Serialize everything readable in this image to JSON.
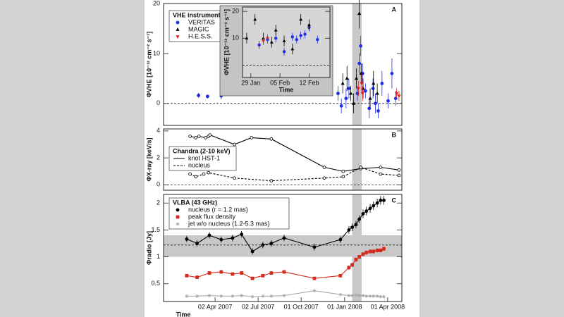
{
  "chart_data": [
    {
      "type": "scatter",
      "title": "A",
      "ylabel": "ΦVHE [10⁻¹² cm⁻² s⁻¹]",
      "xlim": [
        "2006-12-14",
        "2008-05-01"
      ],
      "ylim": [
        -4.4,
        20
      ],
      "yticks": [
        0,
        10,
        20
      ],
      "reference_line": 0,
      "shaded_x": [
        "2008-01-17",
        "2008-02-06"
      ],
      "legend": {
        "title": "VHE instruments",
        "position": "upper left",
        "symbol": "marker"
      },
      "series": [
        {
          "name": "VERITAS",
          "color": "#1f2ee6",
          "marker": "circle",
          "x": [
            "2007-02-26",
            "2007-03-17",
            "2007-04-15",
            "2007-12-18",
            "2007-12-25",
            "2008-01-04",
            "2008-01-10",
            "2008-01-28",
            "2008-02-01",
            "2008-02-04",
            "2008-02-08",
            "2008-02-14",
            "2008-02-22",
            "2008-03-01",
            "2008-03-06",
            "2008-03-12",
            "2008-03-20",
            "2008-04-02",
            "2008-04-10",
            "2008-04-18"
          ],
          "values": [
            1.6,
            1.4,
            1.5,
            2.0,
            -0.5,
            1.0,
            3.0,
            2.0,
            8.0,
            11.5,
            6.0,
            2.5,
            -1.0,
            3.0,
            0.0,
            -1.5,
            4.0,
            0.5,
            6.0,
            1.0
          ],
          "errors": [
            0.5,
            0.4,
            0.7,
            1.5,
            1.5,
            2.0,
            2.0,
            1.5,
            2.0,
            2.0,
            2.0,
            1.5,
            2.0,
            2.0,
            2.0,
            1.5,
            2.5,
            1.5,
            3.0,
            1.5
          ]
        },
        {
          "name": "MAGIC",
          "color": "#000000",
          "marker": "triangle",
          "x": [
            "2007-12-28",
            "2008-01-06",
            "2008-01-14",
            "2008-01-20",
            "2008-01-26",
            "2008-02-01",
            "2008-02-05",
            "2008-02-09",
            "2008-02-24",
            "2008-03-02",
            "2008-03-10"
          ],
          "values": [
            4.0,
            5.0,
            2.0,
            0.0,
            5.0,
            18.0,
            6.0,
            3.0,
            1.0,
            4.0,
            2.0
          ],
          "errors": [
            2.0,
            2.5,
            1.5,
            2.0,
            2.0,
            3.0,
            2.0,
            2.0,
            2.0,
            2.5,
            2.0
          ]
        },
        {
          "name": "H.E.S.S.",
          "color": "#e02020",
          "marker": "triangle-down",
          "x": [
            "2008-01-30",
            "2008-02-06",
            "2008-02-08",
            "2008-04-20",
            "2008-04-25"
          ],
          "values": [
            3.0,
            4.0,
            2.0,
            2.0,
            1.5
          ],
          "errors": [
            1.5,
            2.0,
            1.5,
            1.0,
            1.0
          ]
        }
      ]
    },
    {
      "type": "scatter",
      "xlabel": "Time",
      "ylabel": "ΦVHE [10⁻¹² cm⁻² s⁻¹]",
      "xlim": [
        "2008-01-27",
        "2008-02-17"
      ],
      "ylim": [
        -4.6,
        21.6
      ],
      "yticks": [
        10,
        20
      ],
      "xticks": [
        {
          "value": "2008-01-29",
          "label": "29 Jan"
        },
        {
          "value": "2008-02-05",
          "label": "05 Feb"
        },
        {
          "value": "2008-02-12",
          "label": "12 Feb"
        }
      ],
      "reference_line": 0,
      "series": [
        {
          "color": "#1f2ee6",
          "marker": "circle",
          "x": [
            "2008-01-31",
            "2008-02-02",
            "2008-02-04",
            "2008-02-06",
            "2008-02-08",
            "2008-02-09",
            "2008-02-10",
            "2008-02-11",
            "2008-02-12",
            "2008-02-14"
          ],
          "values": [
            7.5,
            9.5,
            10.0,
            5.0,
            10.5,
            9.5,
            11.0,
            11.5,
            14.0,
            9.5
          ],
          "errors": [
            1.5,
            1.5,
            1.5,
            1.5,
            1.5,
            1.5,
            1.5,
            1.5,
            1.5,
            1.5
          ]
        },
        {
          "color": "#000000",
          "marker": "triangle",
          "x": [
            "2008-01-28",
            "2008-01-30",
            "2008-02-01",
            "2008-02-03",
            "2008-02-04",
            "2008-02-06",
            "2008-02-08",
            "2008-02-10",
            "2008-02-12"
          ],
          "values": [
            10.0,
            17.0,
            10.0,
            8.5,
            13.0,
            9.0,
            6.0,
            17.0,
            15.0
          ],
          "errors": [
            2.0,
            2.0,
            2.0,
            2.0,
            2.0,
            2.0,
            2.0,
            2.0,
            2.0
          ]
        },
        {
          "color": "#e02020",
          "marker": "triangle-down",
          "x": [
            "2008-02-01",
            "2008-02-02"
          ],
          "values": [
            9.0,
            10.0
          ],
          "errors": [
            1.5,
            1.5
          ]
        }
      ]
    },
    {
      "type": "line",
      "title": "B",
      "ylabel": "ΦX-ray [keV/s]",
      "xlim": [
        "2006-12-14",
        "2008-05-01"
      ],
      "ylim": [
        -0.4,
        4.15
      ],
      "yticks": [
        0,
        2,
        4
      ],
      "reference_line": 0,
      "shaded_x": [
        "2008-01-17",
        "2008-02-06"
      ],
      "legend": {
        "title": "Chandra (2-10 keV)",
        "position": "upper left",
        "symbol": "line"
      },
      "series": [
        {
          "name": "knot HST-1",
          "color": "#000000",
          "marker": "circle-open",
          "dash": false,
          "x": [
            "2007-02-08",
            "2007-02-20",
            "2007-02-27",
            "2007-03-13",
            "2007-03-19",
            "2007-03-22",
            "2007-05-13",
            "2007-06-18",
            "2007-07-30",
            "2007-11-19",
            "2007-12-29",
            "2008-02-04",
            "2008-03-17",
            "2008-04-25"
          ],
          "values": [
            3.6,
            3.5,
            3.6,
            3.5,
            3.6,
            3.7,
            3.0,
            3.5,
            3.4,
            1.3,
            1.0,
            1.2,
            1.3,
            1.1
          ]
        },
        {
          "name": "nucleus",
          "color": "#000000",
          "marker": "circle-open",
          "dash": true,
          "x": [
            "2007-02-08",
            "2007-02-20",
            "2007-03-09",
            "2007-03-19",
            "2007-05-13",
            "2007-07-30",
            "2007-11-19",
            "2007-12-29",
            "2008-02-04",
            "2008-03-17",
            "2008-04-25"
          ],
          "values": [
            0.8,
            0.6,
            0.8,
            0.9,
            0.5,
            0.3,
            0.5,
            0.6,
            1.3,
            0.8,
            0.7
          ]
        }
      ]
    },
    {
      "type": "line",
      "title": "C",
      "xlabel": "Time",
      "ylabel": "Φradio [Jy]",
      "xlim": [
        "2006-12-14",
        "2008-05-01"
      ],
      "ylim": [
        0.17,
        2.16
      ],
      "yticks": [
        0.5,
        1,
        1.5,
        2
      ],
      "xticks": [
        {
          "value": "2007-04-02",
          "label": "02 Apr 2007"
        },
        {
          "value": "2007-07-02",
          "label": "02 Jul 2007"
        },
        {
          "value": "2007-10-01",
          "label": "01 Oct 2007"
        },
        {
          "value": "2008-01-01",
          "label": "01 Jan 2008"
        },
        {
          "value": "2008-04-01",
          "label": "01 Apr 2008"
        }
      ],
      "reference_line": 1.22,
      "shaded_x": [
        "2008-01-17",
        "2008-02-06"
      ],
      "shaded_y": [
        1.0,
        1.4
      ],
      "legend": {
        "title": "VLBA (43 GHz)",
        "position": "upper left",
        "symbol": "marker"
      },
      "series": [
        {
          "name": "nucleus (r = 1.2 mas)",
          "color": "#000000",
          "marker": "circle",
          "x": [
            "2007-02-01",
            "2007-02-23",
            "2007-03-21",
            "2007-04-15",
            "2007-05-09",
            "2007-05-28",
            "2007-06-20",
            "2007-07-12",
            "2007-07-30",
            "2007-08-26",
            "2007-10-29",
            "2007-12-23",
            "2008-01-10",
            "2008-01-17",
            "2008-01-25",
            "2008-02-01",
            "2008-02-09",
            "2008-02-16",
            "2008-02-24",
            "2008-03-02",
            "2008-03-10",
            "2008-03-17",
            "2008-03-24"
          ],
          "values": [
            1.33,
            1.25,
            1.4,
            1.32,
            1.35,
            1.42,
            1.1,
            1.22,
            1.25,
            1.35,
            1.18,
            1.32,
            1.5,
            1.55,
            1.6,
            1.7,
            1.8,
            1.85,
            1.9,
            1.95,
            2.0,
            2.05,
            2.05
          ],
          "errors": [
            0.06,
            0.06,
            0.06,
            0.06,
            0.06,
            0.06,
            0.06,
            0.06,
            0.06,
            0.06,
            0.06,
            0.06,
            0.07,
            0.07,
            0.07,
            0.07,
            0.08,
            0.08,
            0.08,
            0.08,
            0.08,
            0.08,
            0.08
          ]
        },
        {
          "name": "peak flux density",
          "color": "#d42a1e",
          "marker": "square",
          "x": [
            "2007-02-01",
            "2007-02-23",
            "2007-03-21",
            "2007-04-15",
            "2007-05-09",
            "2007-05-28",
            "2007-06-20",
            "2007-07-12",
            "2007-07-30",
            "2007-08-26",
            "2007-10-29",
            "2007-12-23",
            "2008-01-10",
            "2008-01-17",
            "2008-01-25",
            "2008-02-01",
            "2008-02-09",
            "2008-02-16",
            "2008-02-24",
            "2008-03-02",
            "2008-03-10",
            "2008-03-17",
            "2008-03-24"
          ],
          "values": [
            0.65,
            0.62,
            0.7,
            0.72,
            0.68,
            0.7,
            0.6,
            0.65,
            0.7,
            0.72,
            0.6,
            0.65,
            0.8,
            0.85,
            0.95,
            1.0,
            1.05,
            1.08,
            1.1,
            1.1,
            1.12,
            1.12,
            1.15
          ],
          "errors": [
            0.03,
            0.03,
            0.03,
            0.03,
            0.03,
            0.03,
            0.03,
            0.03,
            0.03,
            0.03,
            0.03,
            0.03,
            0.04,
            0.04,
            0.04,
            0.04,
            0.04,
            0.04,
            0.04,
            0.04,
            0.04,
            0.04,
            0.04
          ]
        },
        {
          "name": "jet w/o nucleus (1.2-5.3 mas)",
          "color": "#a8a8a8",
          "marker": "star",
          "x": [
            "2007-02-01",
            "2007-02-23",
            "2007-03-21",
            "2007-04-15",
            "2007-05-09",
            "2007-05-28",
            "2007-06-20",
            "2007-07-12",
            "2007-07-30",
            "2007-08-26",
            "2007-10-29",
            "2007-12-23",
            "2008-01-10",
            "2008-01-17",
            "2008-01-25",
            "2008-02-01",
            "2008-02-09",
            "2008-02-16",
            "2008-02-24",
            "2008-03-02",
            "2008-03-10",
            "2008-03-17",
            "2008-03-24"
          ],
          "values": [
            0.27,
            0.27,
            0.28,
            0.27,
            0.27,
            0.28,
            0.26,
            0.27,
            0.27,
            0.28,
            0.37,
            0.3,
            0.28,
            0.28,
            0.29,
            0.28,
            0.28,
            0.27,
            0.27,
            0.27,
            0.27,
            0.26,
            0.26
          ]
        }
      ]
    }
  ]
}
